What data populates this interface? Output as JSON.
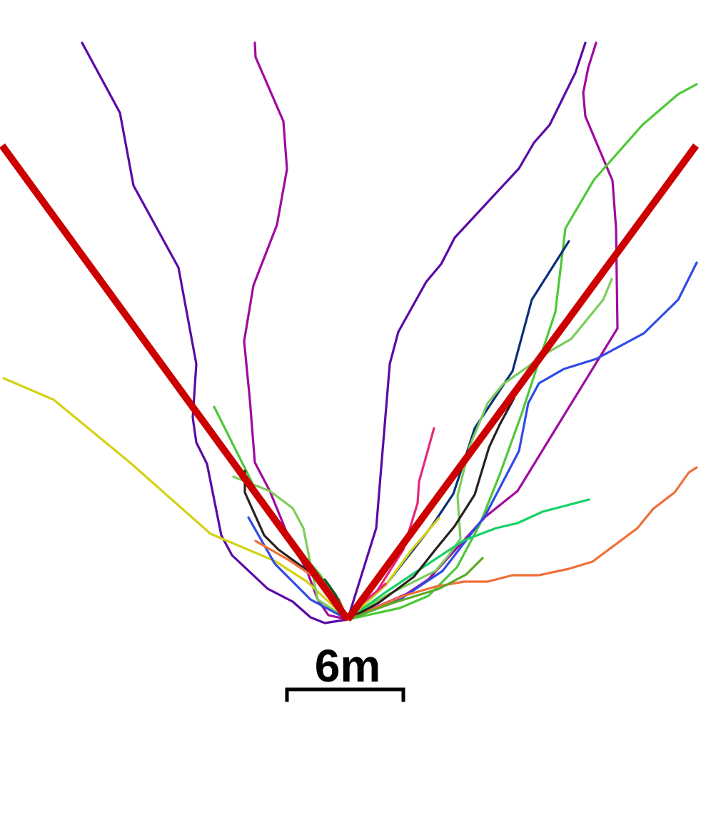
{
  "scale_bar": {
    "label": "6m"
  },
  "colors": {
    "boundary": "#cc0000",
    "scale_bar": "#000000",
    "background": "#ffffff"
  },
  "tracks": [
    {
      "color": "#5a0aa6"
    },
    {
      "color": "#a00aa0"
    },
    {
      "color": "#5a0aa6"
    },
    {
      "color": "#a00aa0"
    },
    {
      "color": "#4ec837"
    },
    {
      "color": "#2f4be6"
    },
    {
      "color": "#0b2f7a"
    },
    {
      "color": "#7ccc5a"
    },
    {
      "color": "#d2d214"
    },
    {
      "color": "#f06e37"
    },
    {
      "color": "#14d264"
    },
    {
      "color": "#e6287a"
    },
    {
      "color": "#2b1f1f"
    },
    {
      "color": "#4ec837"
    },
    {
      "color": "#7ccc5a"
    },
    {
      "color": "#2f4be6"
    },
    {
      "color": "#2b1f1f"
    },
    {
      "color": "#f06e37"
    },
    {
      "color": "#0a5a28"
    },
    {
      "color": "#d2d214"
    },
    {
      "color": "#5aaa28"
    },
    {
      "color": "#e6287a"
    }
  ]
}
